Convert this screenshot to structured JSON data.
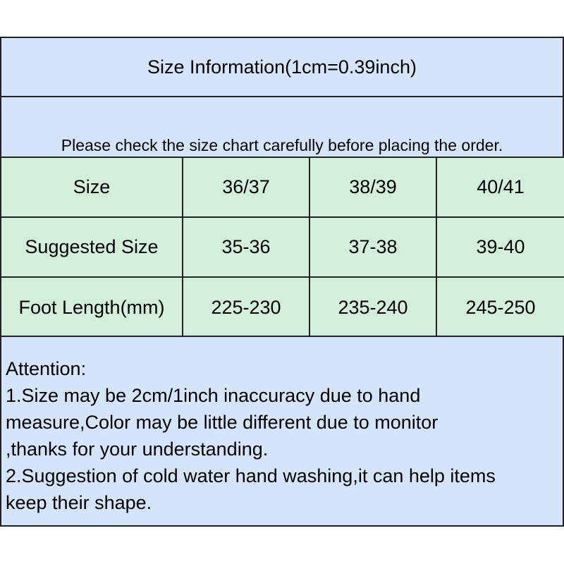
{
  "title": "Size Information(1cm=0.39inch)",
  "subtitle": "Please check the size chart carefully before placing the order.",
  "table": {
    "rows": [
      [
        "Size",
        "36/37",
        "38/39",
        "40/41"
      ],
      [
        "Suggested Size",
        "35-36",
        "37-38",
        "39-40"
      ],
      [
        "Foot Length(mm)",
        "225-230",
        "235-240",
        "245-250"
      ]
    ]
  },
  "attention": {
    "heading": "Attention:",
    "lines": [
      "1.Size may be 2cm/1inch inaccuracy due to hand",
      "measure,Color may be little different due to monitor",
      ",thanks for your understanding.",
      "2.Suggestion of cold water hand washing,it can help items",
      "keep their shape."
    ]
  },
  "colors": {
    "header_bg": "#d6e4fa",
    "table_bg": "#d3eedb",
    "border": "#222222"
  }
}
